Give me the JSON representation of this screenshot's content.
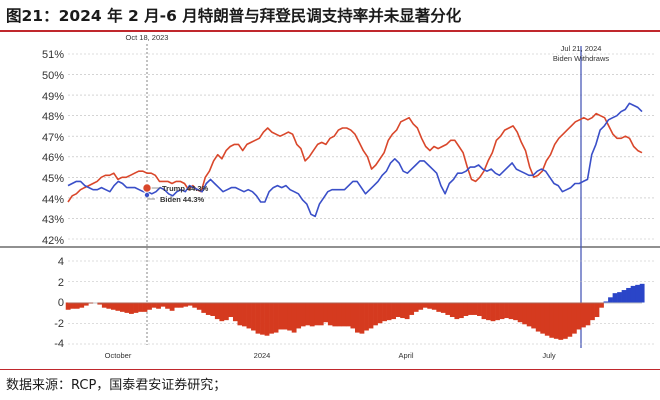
{
  "title": "图21：2024 年 2 月-6 月特朗普与拜登民调支持率并未显著分化",
  "source": "数据来源：RCP，国泰君安证券研究；",
  "colors": {
    "trump": "#d9472b",
    "biden": "#3a4fc8",
    "spread_neg": "#d53a1f",
    "spread_pos": "#2a45c8",
    "title_rule": "#c0282d"
  },
  "chart_data": [
    {
      "type": "line",
      "ylim": [
        42,
        51
      ],
      "yticks": [
        "51%",
        "50%",
        "49%",
        "48%",
        "47%",
        "46%",
        "45%",
        "44%",
        "43%",
        "42%"
      ],
      "xticks": [
        "October",
        "2024",
        "April",
        "July"
      ],
      "grid": true,
      "annotations": {
        "oct": "Oct 18, 2023",
        "jul1": "Jul 21, 2024",
        "jul2": "Biden Withdraws",
        "trump_label": "Trump 44.3%",
        "biden_label": "Biden 44.3%"
      },
      "series": [
        {
          "name": "Trump",
          "values": [
            43.8,
            44.1,
            44.2,
            44.4,
            44.5,
            44.6,
            44.7,
            44.8,
            45,
            45.1,
            45.1,
            45.2,
            44.9,
            45,
            45,
            45.1,
            45.2,
            45.3,
            45.3,
            45.2,
            45.2,
            45.1,
            44.8,
            44.8,
            44.8,
            44.7,
            44.8,
            44.8,
            44.7,
            44.4,
            44.6,
            44.4,
            44.3,
            45,
            45.3,
            45.8,
            46.1,
            45.9,
            46.3,
            46.5,
            46.6,
            46.6,
            46.3,
            46.6,
            46.7,
            46.8,
            46.9,
            47.2,
            47.4,
            47.2,
            47.1,
            47,
            47.1,
            47.2,
            47.1,
            46.6,
            46.4,
            45.8,
            46,
            46.3,
            46.6,
            46.7,
            46.6,
            46.9,
            47,
            47.3,
            47.4,
            47.4,
            47.3,
            47.1,
            46.7,
            46.3,
            46,
            45.4,
            45.6,
            45.9,
            46.2,
            46.8,
            47.1,
            47.3,
            47.7,
            47.8,
            47.9,
            47.6,
            47.4,
            46.9,
            46.5,
            46.3,
            46.5,
            46.4,
            46.5,
            46.6,
            46.8,
            46.8,
            46.5,
            46.2,
            45.5,
            44.9,
            44.8,
            45,
            45.3,
            45.8,
            46.2,
            46.8,
            47,
            47.3,
            47.4,
            47.5,
            47.2,
            46.7,
            46.3,
            45.5,
            45,
            45.1,
            45.3,
            45.8,
            46.1,
            46.6,
            46.9,
            47.1,
            47.3,
            47.5,
            47.7,
            47.8,
            47.9,
            47.8,
            47.9,
            48.1,
            48,
            47.9,
            47.5,
            47.1,
            46.9,
            46.9,
            47,
            46.9,
            46.5,
            46.3,
            46.2
          ]
        },
        {
          "name": "Biden",
          "values": [
            44.6,
            44.7,
            44.8,
            44.8,
            44.6,
            44.5,
            44.4,
            44.4,
            44.5,
            44.4,
            44.3,
            44.6,
            44.8,
            44.7,
            44.5,
            44.5,
            44.5,
            44.4,
            44.3,
            44.3,
            44.2,
            44.3,
            44.5,
            44.4,
            44.2,
            44.1,
            44.3,
            44.4,
            44.3,
            44.6,
            44.5,
            44.4,
            44.3,
            44.7,
            44.9,
            44.7,
            44.5,
            44.3,
            44.4,
            44.5,
            44.5,
            44.4,
            44.3,
            44.4,
            44.3,
            44.1,
            43.8,
            43.8,
            44.3,
            44.5,
            44.6,
            44.5,
            44.6,
            44.4,
            44.3,
            44.2,
            43.9,
            43.7,
            43.2,
            43.1,
            43.7,
            44,
            44.3,
            44.4,
            44.4,
            44.4,
            44.4,
            44.6,
            44.8,
            44.8,
            44.5,
            44.2,
            44.4,
            44.6,
            44.8,
            45.1,
            45.3,
            45.7,
            45.9,
            45.7,
            45.3,
            45.2,
            45.4,
            45.6,
            45.8,
            45.8,
            45.6,
            45.4,
            45.2,
            44.6,
            44.2,
            44.7,
            44.9,
            45.2,
            45.2,
            45.3,
            45.5,
            45.5,
            45.6,
            45.4,
            45.3,
            45.4,
            45.2,
            45.1,
            45.3,
            45.5,
            45.7,
            45.4,
            45.3,
            45.2,
            45.1,
            45.1,
            45.3,
            45.4,
            45.3,
            45,
            44.7,
            44.6,
            44.3,
            44.4,
            44.5,
            44.7,
            44.7,
            44.8,
            44.9,
            46.1,
            46.6,
            47.3,
            47.5,
            47.8,
            47.9,
            48,
            48.2,
            48.3,
            48.6,
            48.5,
            48.4,
            48.2
          ]
        }
      ]
    },
    {
      "type": "bar",
      "ylim": [
        -4,
        4
      ],
      "yticks": [
        "4",
        "2",
        "0",
        "-2",
        "-4"
      ],
      "series": [
        {
          "values": [
            -0.7,
            -0.6,
            -0.6,
            -0.5,
            -0.3,
            -0.1,
            0,
            -0.2,
            -0.5,
            -0.6,
            -0.7,
            -0.8,
            -0.9,
            -1,
            -1.1,
            -1,
            -0.9,
            -0.9,
            -0.7,
            -0.5,
            -0.6,
            -0.4,
            -0.6,
            -0.8,
            -0.5,
            -0.5,
            -0.4,
            -0.3,
            -0.5,
            -0.7,
            -1,
            -1.2,
            -1.3,
            -1.6,
            -1.8,
            -1.7,
            -1.4,
            -1.8,
            -2.2,
            -2.3,
            -2.5,
            -2.7,
            -3,
            -3.1,
            -3.2,
            -3,
            -2.9,
            -2.6,
            -2.6,
            -2.7,
            -2.9,
            -2.5,
            -2.3,
            -2.2,
            -2.3,
            -2.2,
            -2.2,
            -1.9,
            -2.2,
            -2.3,
            -2.3,
            -2.3,
            -2.3,
            -2.5,
            -2.9,
            -3,
            -2.7,
            -2.5,
            -2.2,
            -2,
            -1.8,
            -1.7,
            -1.6,
            -1.4,
            -1.5,
            -1.6,
            -1.2,
            -0.9,
            -0.7,
            -0.5,
            -0.6,
            -0.7,
            -0.9,
            -1,
            -1.2,
            -1.4,
            -1.6,
            -1.5,
            -1.3,
            -1.2,
            -1.2,
            -1.3,
            -1.6,
            -1.7,
            -1.8,
            -1.7,
            -1.6,
            -1.5,
            -1.6,
            -1.7,
            -1.9,
            -2.1,
            -2.3,
            -2.5,
            -2.8,
            -3,
            -3.2,
            -3.4,
            -3.5,
            -3.6,
            -3.5,
            -3.3,
            -3,
            -2.6,
            -2.4,
            -2.2,
            -1.7,
            -1.4,
            -0.5,
            0.1,
            0.5,
            0.9,
            1,
            1.2,
            1.4,
            1.6,
            1.7,
            1.8
          ]
        }
      ]
    }
  ]
}
